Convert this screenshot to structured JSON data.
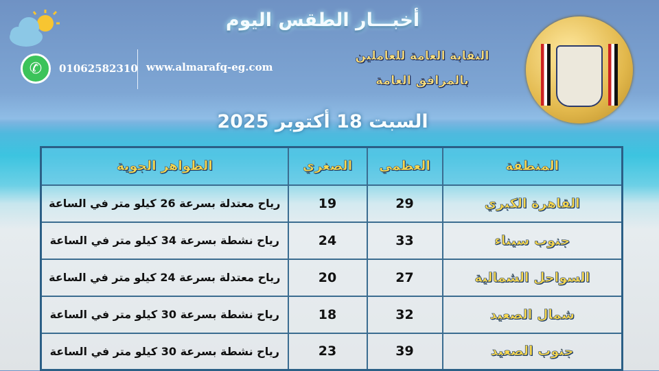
{
  "header": {
    "title": "أخبـــار الطقس اليوم",
    "phone": "01062582310",
    "website": "www.almarafq-eg.com",
    "org_line1": "النقابة العامة للعاملين",
    "org_line2": "بالمرافق العامة",
    "date": "السبت 18 أكتوبر 2025",
    "logo_text": "النقابة العامة للعاملين بالمرافق العامة"
  },
  "icons": {
    "weather": "cloud-sun-icon",
    "contact": "whatsapp-icon"
  },
  "table": {
    "headers": [
      "المنطقة",
      "العظمي",
      "الصغري",
      "الظواهر الجوية"
    ],
    "rows": [
      {
        "region": "القاهرة الكبري",
        "max": "29",
        "min": "19",
        "phenomena": "رياح معتدلة بسرعة 26 كيلو متر في الساعة"
      },
      {
        "region": "جنوب سيناء",
        "max": "33",
        "min": "24",
        "phenomena": "رياح نشطة بسرعة 34 كيلو متر في الساعة"
      },
      {
        "region": "السواحل الشمالية",
        "max": "27",
        "min": "20",
        "phenomena": "رياح معتدلة بسرعة 24 كيلو متر في الساعة"
      },
      {
        "region": "شمال الصعيد",
        "max": "32",
        "min": "18",
        "phenomena": "رياح نشطة بسرعة 30 كيلو متر في الساعة"
      },
      {
        "region": "جنوب الصعيد",
        "max": "39",
        "min": "23",
        "phenomena": "رياح نشطة بسرعة 30 كيلو متر في الساعة"
      }
    ]
  }
}
